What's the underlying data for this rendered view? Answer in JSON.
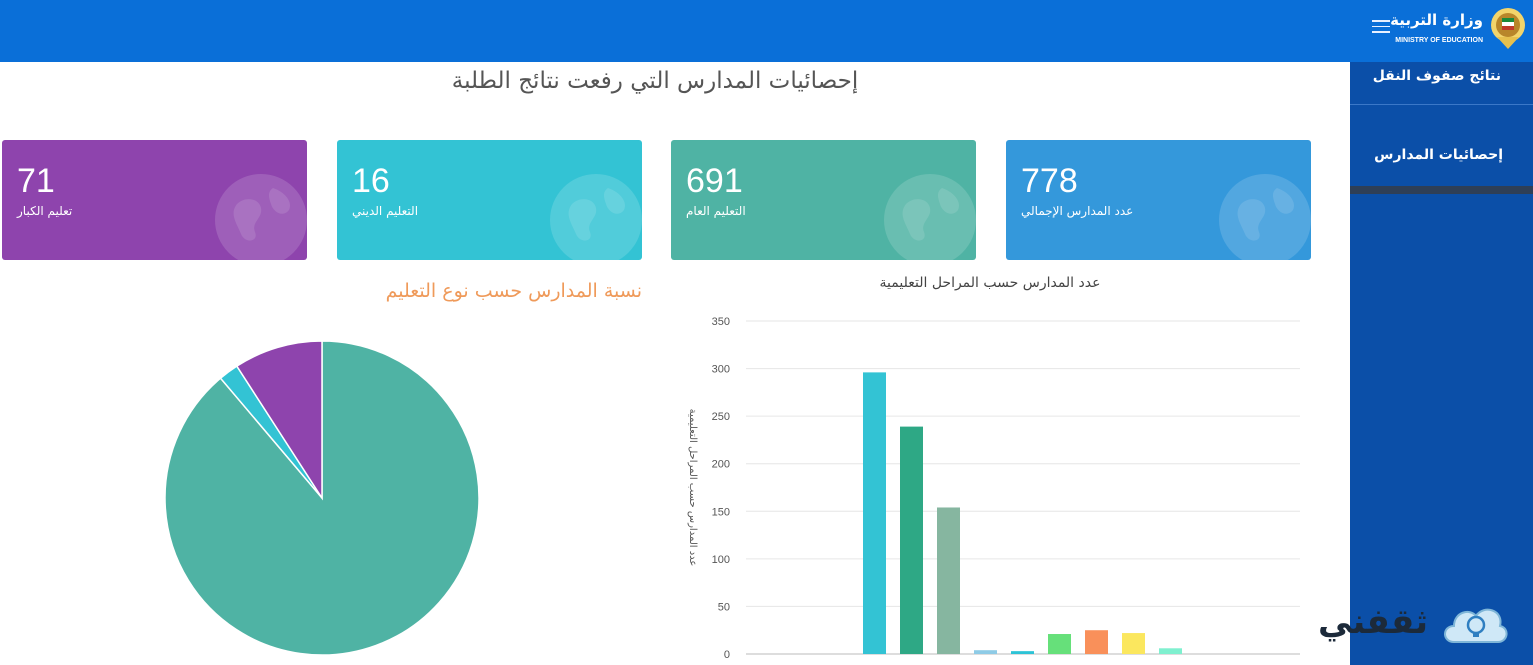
{
  "header": {
    "logo_ar": "وزارة التربية",
    "logo_en": "MINISTRY OF EDUCATION",
    "menu_icon": "hamburger-icon"
  },
  "sidebar": {
    "items": [
      {
        "label": "نتائج صفوف النقل"
      },
      {
        "label": "إحصائيات المدارس"
      }
    ]
  },
  "main": {
    "title": "إحصائيات المدارس التي رفعت نتائج الطلبة"
  },
  "cards": [
    {
      "value": "71",
      "label": "تعليم الكبار",
      "color": "#8e44ad"
    },
    {
      "value": "16",
      "label": "التعليم الديني",
      "color": "#33c3d4"
    },
    {
      "value": "691",
      "label": "التعليم العام",
      "color": "#4fb3a4"
    },
    {
      "value": "778",
      "label": "عدد المدارس الإجمالي",
      "color": "#3498db"
    }
  ],
  "colors": {
    "header": "#0a6fd8",
    "sidebar": "#0b4fa8",
    "pie_title": "#ef9a5a"
  },
  "chart_data": [
    {
      "type": "pie",
      "title": "نسبة المدارس حسب نوع التعليم",
      "categories": [
        "التعليم العام",
        "التعليم الديني",
        "تعليم الكبار"
      ],
      "values": [
        691,
        16,
        71
      ],
      "colors": [
        "#4fb3a4",
        "#33c3d4",
        "#8e44ad"
      ]
    },
    {
      "type": "bar",
      "title": "عدد المدارس حسب المراحل التعليمية",
      "ylabel": "عدد المدارس حسب المراحل التعليمية",
      "ylim": [
        0,
        350
      ],
      "yticks": [
        0,
        50,
        100,
        150,
        200,
        250,
        300,
        350
      ],
      "grid": true,
      "values": [
        296,
        239,
        154,
        4,
        3,
        21,
        25,
        22,
        6
      ],
      "colors": [
        "#33c3d4",
        "#2ea885",
        "#86b6a0",
        "#8ecbe6",
        "#2dc3d6",
        "#66e07a",
        "#f9905a",
        "#fbe75e",
        "#7ff0cf"
      ]
    }
  ],
  "watermark": {
    "text": "ثقفني"
  }
}
